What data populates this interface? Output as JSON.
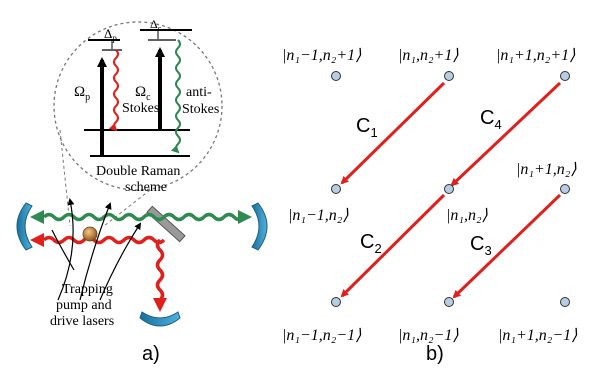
{
  "panel_a": {
    "label": "a)",
    "inset": {
      "delta_p": "Δ",
      "delta_p_sub": "p",
      "delta_c": "Δ",
      "delta_c_sub": "c",
      "omega_p": "Ω",
      "omega_p_sub": "p",
      "omega_c": "Ω",
      "omega_c_sub": "c",
      "stokes": "Stokes",
      "anti_stokes_1": "anti-",
      "anti_stokes_2": "Stokes",
      "scheme_line1": "Double Raman",
      "scheme_line2": "scheme"
    },
    "lasers_label": [
      "Trapping",
      "pump and",
      "drive lasers"
    ]
  },
  "panel_b": {
    "label": "b)",
    "states": {
      "top_left": "|n₁−1,n₂+1⟩",
      "top_mid": "|n₁,n₂+1⟩",
      "top_right": "|n₁+1,n₂+1⟩",
      "mid_left": "|n₁−1,n₂⟩",
      "mid_mid": "|n₁,n₂⟩",
      "mid_right": "|n₁+1,n₂⟩",
      "bot_left": "|n₁−1,n₂−1⟩",
      "bot_mid": "|n₁,n₂−1⟩",
      "bot_right": "|n₁+1,n₂−1⟩"
    },
    "couplings": {
      "c1": "C",
      "c1_sub": "1",
      "c2": "C",
      "c2_sub": "2",
      "c3": "C",
      "c3_sub": "3",
      "c4": "C",
      "c4_sub": "4"
    }
  },
  "colors": {
    "red": "#e0201c",
    "green": "#2e8a50",
    "mirror": "#2f8fbf",
    "dot": "#b7cde3",
    "atom": "#c88a3c"
  }
}
